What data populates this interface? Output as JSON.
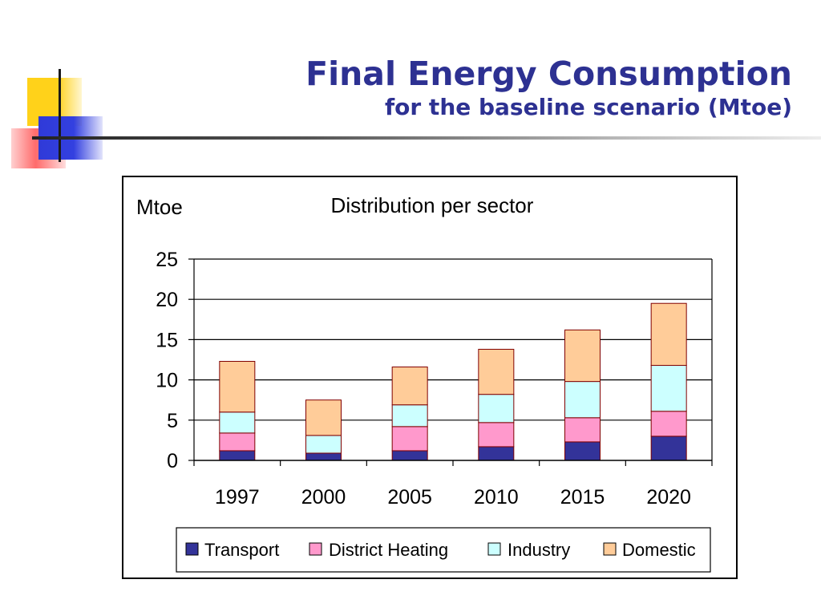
{
  "slide": {
    "title": "Final Energy Consumption",
    "subtitle": "for the baseline scenario (Mtoe)"
  },
  "chart_data": {
    "type": "bar",
    "stacked": true,
    "title": "Distribution per sector",
    "ylabel": "Mtoe",
    "xlabel": "",
    "categories": [
      "1997",
      "2000",
      "2005",
      "2010",
      "2015",
      "2020"
    ],
    "ylim": [
      0,
      25
    ],
    "yticks": [
      0,
      5,
      10,
      15,
      20,
      25
    ],
    "grid": true,
    "legend_position": "bottom",
    "series": [
      {
        "name": "Transport",
        "color": "#333399",
        "values": [
          1.2,
          0.9,
          1.2,
          1.7,
          2.3,
          3.0
        ]
      },
      {
        "name": "District Heating",
        "color": "#ff99cc",
        "values": [
          2.2,
          0.0,
          3.0,
          3.0,
          3.0,
          3.1
        ]
      },
      {
        "name": "Industry",
        "color": "#ccffff",
        "values": [
          2.6,
          2.2,
          2.7,
          3.5,
          4.5,
          5.7
        ]
      },
      {
        "name": "Domestic",
        "color": "#ffcc99",
        "values": [
          6.3,
          4.4,
          4.7,
          5.6,
          6.4,
          7.7
        ]
      }
    ]
  }
}
